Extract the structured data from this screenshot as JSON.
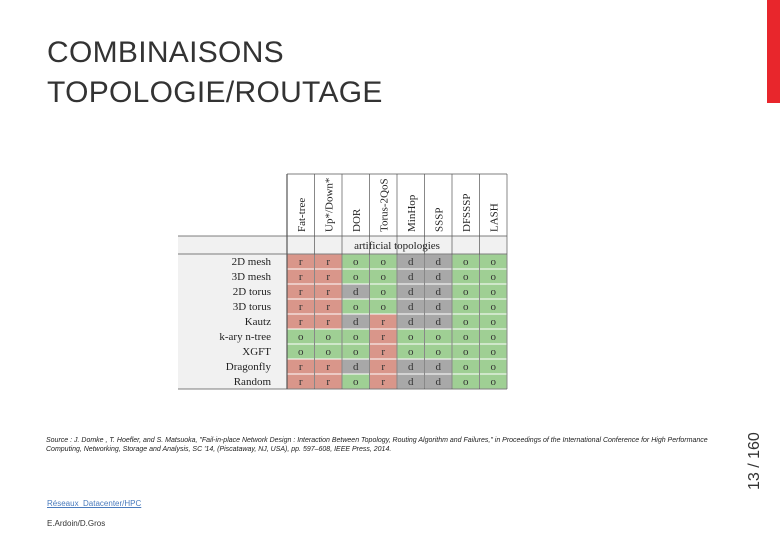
{
  "slide": {
    "title_line1": "COMBINAISONS",
    "title_line2": "TOPOLOGIE/ROUTAGE",
    "page_number": "13 / 160",
    "source": "Source : J. Domke , T. Hoefler, and S. Matsuoka, \"Fail-in-place Network Design : Interaction Between Topology, Routing Algorithm and Failures,\" in Proceedings of the International Conference for High Performance Computing, Networking, Storage and Analysis, SC '14, (Piscataway, NJ, USA), pp. 597–608, IEEE Press, 2014.",
    "footer_link": "Réseaux_Datacenter/HPC",
    "footer_authors": "E.Ardoin/D.Gros",
    "accent_color": "#e8262c"
  },
  "matrix": {
    "group_label": "artificial topologies",
    "columns": [
      "Fat-tree",
      "Up*/Down*",
      "DOR",
      "Torus-2QoS",
      "MinHop",
      "SSSP",
      "DFSSSP",
      "LASH"
    ],
    "rows": [
      {
        "label": "2D mesh",
        "cells": [
          "r",
          "r",
          "o",
          "o",
          "d",
          "d",
          "o",
          "o"
        ]
      },
      {
        "label": "3D mesh",
        "cells": [
          "r",
          "r",
          "o",
          "o",
          "d",
          "d",
          "o",
          "o"
        ]
      },
      {
        "label": "2D torus",
        "cells": [
          "r",
          "r",
          "d",
          "o",
          "d",
          "d",
          "o",
          "o"
        ]
      },
      {
        "label": "3D torus",
        "cells": [
          "r",
          "r",
          "o",
          "o",
          "d",
          "d",
          "o",
          "o"
        ]
      },
      {
        "label": "Kautz",
        "cells": [
          "r",
          "r",
          "d",
          "r",
          "d",
          "d",
          "o",
          "o"
        ]
      },
      {
        "label": "k-ary n-tree",
        "cells": [
          "o",
          "o",
          "o",
          "r",
          "o",
          "o",
          "o",
          "o"
        ]
      },
      {
        "label": "XGFT",
        "cells": [
          "o",
          "o",
          "o",
          "r",
          "o",
          "o",
          "o",
          "o"
        ]
      },
      {
        "label": "Dragonfly",
        "cells": [
          "r",
          "r",
          "d",
          "r",
          "d",
          "d",
          "o",
          "o"
        ]
      },
      {
        "label": "Random",
        "cells": [
          "r",
          "r",
          "o",
          "r",
          "d",
          "d",
          "o",
          "o"
        ]
      }
    ],
    "colors": {
      "r": "#d9968a",
      "o": "#9fcf94",
      "d": "#a8a8a8"
    }
  }
}
